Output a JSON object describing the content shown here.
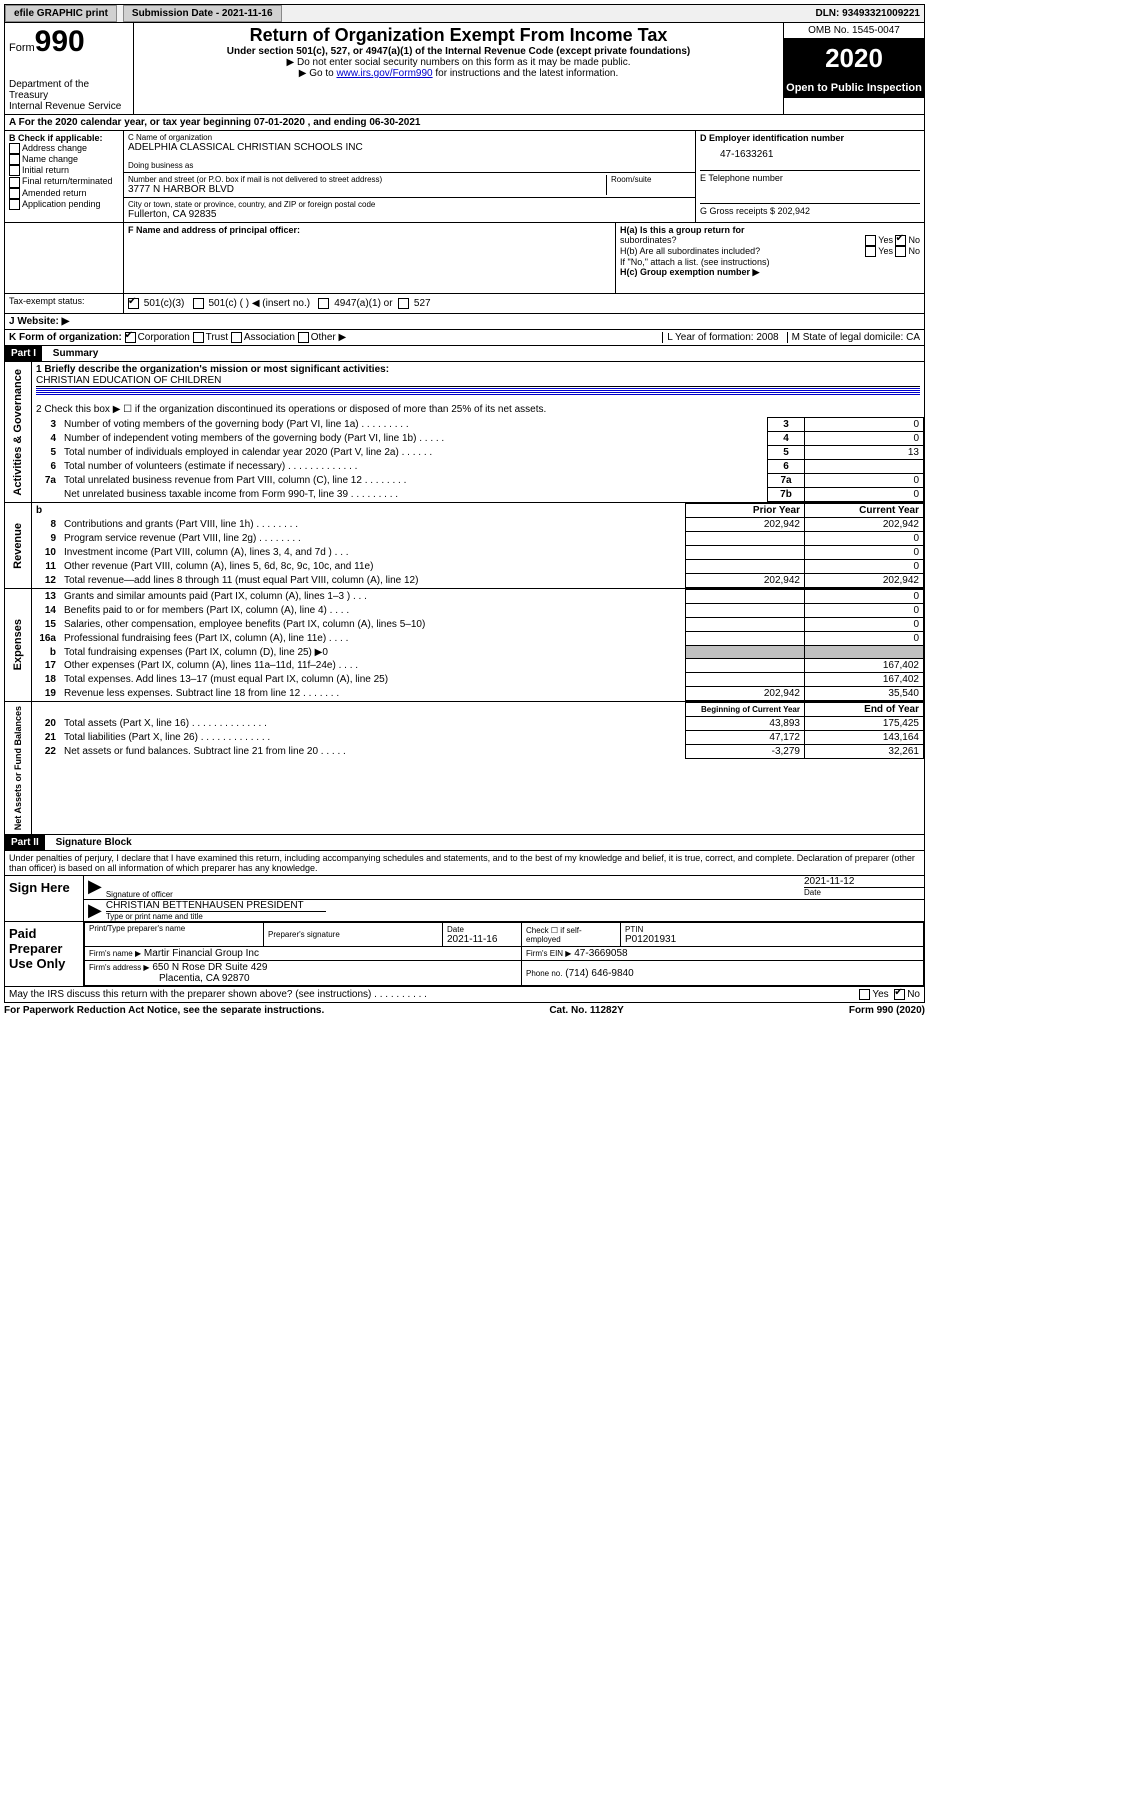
{
  "topbar": {
    "efile_label": "efile GRAPHIC print",
    "submission_label": "Submission Date - 2021-11-16",
    "dln": "DLN: 93493321009221"
  },
  "header": {
    "form_label": "Form",
    "form_number": "990",
    "dept": "Department of the Treasury",
    "irs": "Internal Revenue Service",
    "title": "Return of Organization Exempt From Income Tax",
    "subtitle": "Under section 501(c), 527, or 4947(a)(1) of the Internal Revenue Code (except private foundations)",
    "note1": "▶ Do not enter social security numbers on this form as it may be made public.",
    "note2_pre": "▶ Go to ",
    "note2_link": "www.irs.gov/Form990",
    "note2_post": " for instructions and the latest information.",
    "omb": "OMB No. 1545-0047",
    "year": "2020",
    "open_public": "Open to Public Inspection"
  },
  "rowA": "A For the 2020 calendar year, or tax year beginning 07-01-2020    , and ending 06-30-2021",
  "sectionB": {
    "label": "B Check if applicable:",
    "items": [
      "Address change",
      "Name change",
      "Initial return",
      "Final return/terminated",
      "Amended return",
      "Application pending"
    ]
  },
  "sectionC": {
    "name_label": "C Name of organization",
    "name": "ADELPHIA CLASSICAL CHRISTIAN SCHOOLS INC",
    "dba_label": "Doing business as",
    "street_label": "Number and street (or P.O. box if mail is not delivered to street address)",
    "room_label": "Room/suite",
    "street": "3777 N HARBOR BLVD",
    "city_label": "City or town, state or province, country, and ZIP or foreign postal code",
    "city": "Fullerton, CA  92835"
  },
  "sectionD": {
    "ein_label": "D Employer identification number",
    "ein": "47-1633261",
    "phone_label": "E Telephone number",
    "gross_label": "G Gross receipts $ 202,942"
  },
  "sectionF": {
    "label": "F  Name and address of principal officer:"
  },
  "sectionH": {
    "ha": "H(a)  Is this a group return for",
    "ha2": "subordinates?",
    "hb": "H(b)  Are all subordinates included?",
    "hb_note": "If \"No,\" attach a list. (see instructions)",
    "hc": "H(c)  Group exemption number ▶",
    "yes": "Yes",
    "no": "No"
  },
  "taxStatus": {
    "label": "Tax-exempt status:",
    "opt1": "501(c)(3)",
    "opt2": "501(c) (  ) ◀ (insert no.)",
    "opt3": "4947(a)(1) or",
    "opt4": "527"
  },
  "websiteJ": "J    Website: ▶",
  "rowK": {
    "label": "K Form of organization:",
    "opts": [
      "Corporation",
      "Trust",
      "Association",
      "Other ▶"
    ],
    "year_label": "L Year of formation: 2008",
    "state_label": "M State of legal domicile: CA"
  },
  "part1": {
    "title": "Part I",
    "subtitle": "Summary",
    "line1_label": "1  Briefly describe the organization's mission or most significant activities:",
    "line1_value": "CHRISTIAN EDUCATION OF CHILDREN",
    "line2": "2    Check this box ▶ ☐  if the organization discontinued its operations or disposed of more than 25% of its net assets."
  },
  "governance": {
    "side_label": "Activities & Governance",
    "rows": [
      {
        "n": "3",
        "label": "Number of voting members of the governing body (Part VI, line 1a)   .     .     .     .     .     .     .     .     .",
        "box": "3",
        "val": "0"
      },
      {
        "n": "4",
        "label": "Number of independent voting members of the governing body (Part VI, line 1b)   .     .     .     .     .",
        "box": "4",
        "val": "0"
      },
      {
        "n": "5",
        "label": "Total number of individuals employed in calendar year 2020 (Part V, line 2a)   .     .     .     .     .     .",
        "box": "5",
        "val": "13"
      },
      {
        "n": "6",
        "label": "Total number of volunteers (estimate if necessary)   .     .     .     .     .     .     .     .     .     .     .     .     .",
        "box": "6",
        "val": ""
      },
      {
        "n": "7a",
        "label": "Total unrelated business revenue from Part VIII, column (C), line 12   .     .     .     .     .     .     .     .",
        "box": "7a",
        "val": "0"
      },
      {
        "n": "",
        "label": "Net unrelated business taxable income from Form 990-T, line 39   .     .     .     .     .     .     .     .     .",
        "box": "7b",
        "val": "0"
      }
    ]
  },
  "revenue": {
    "side_label": "Revenue",
    "header_b": "b",
    "col_prior": "Prior Year",
    "col_current": "Current Year",
    "rows": [
      {
        "n": "8",
        "label": "Contributions and grants (Part VIII, line 1h)   .     .     .     .     .     .     .     .",
        "prior": "202,942",
        "curr": "202,942"
      },
      {
        "n": "9",
        "label": "Program service revenue (Part VIII, line 2g)   .     .     .     .     .     .     .     .",
        "prior": "",
        "curr": "0"
      },
      {
        "n": "10",
        "label": "Investment income (Part VIII, column (A), lines 3, 4, and 7d )   .     .     .",
        "prior": "",
        "curr": "0"
      },
      {
        "n": "11",
        "label": "Other revenue (Part VIII, column (A), lines 5, 6d, 8c, 9c, 10c, and 11e)",
        "prior": "",
        "curr": "0"
      },
      {
        "n": "12",
        "label": "Total revenue—add lines 8 through 11 (must equal Part VIII, column (A), line 12)",
        "prior": "202,942",
        "curr": "202,942"
      }
    ]
  },
  "expenses": {
    "side_label": "Expenses",
    "rows": [
      {
        "n": "13",
        "label": "Grants and similar amounts paid (Part IX, column (A), lines 1–3 )   .     .     .",
        "prior": "",
        "curr": "0"
      },
      {
        "n": "14",
        "label": "Benefits paid to or for members (Part IX, column (A), line 4)   .     .     .     .",
        "prior": "",
        "curr": "0"
      },
      {
        "n": "15",
        "label": "Salaries, other compensation, employee benefits (Part IX, column (A), lines 5–10)",
        "prior": "",
        "curr": "0"
      },
      {
        "n": "16a",
        "label": "Professional fundraising fees (Part IX, column (A), line 11e)   .     .     .     .",
        "prior": "",
        "curr": "0"
      },
      {
        "n": "b",
        "label": "Total fundraising expenses (Part IX, column (D), line 25) ▶0",
        "prior": "shaded",
        "curr": "shaded"
      },
      {
        "n": "17",
        "label": "Other expenses (Part IX, column (A), lines 11a–11d, 11f–24e)   .     .     .     .",
        "prior": "",
        "curr": "167,402"
      },
      {
        "n": "18",
        "label": "Total expenses. Add lines 13–17 (must equal Part IX, column (A), line 25)",
        "prior": "",
        "curr": "167,402"
      },
      {
        "n": "19",
        "label": "Revenue less expenses. Subtract line 18 from line 12   .     .     .     .     .     .     .",
        "prior": "202,942",
        "curr": "35,540"
      }
    ]
  },
  "netassets": {
    "side_label": "Net Assets or Fund Balances",
    "col_begin": "Beginning of Current Year",
    "col_end": "End of Year",
    "rows": [
      {
        "n": "20",
        "label": "Total assets (Part X, line 16)   .     .     .     .     .     .     .     .     .     .     .     .     .     .",
        "begin": "43,893",
        "end": "175,425"
      },
      {
        "n": "21",
        "label": "Total liabilities (Part X, line 26)   .     .     .     .     .     .     .     .     .     .     .     .     .",
        "begin": "47,172",
        "end": "143,164"
      },
      {
        "n": "22",
        "label": "Net assets or fund balances. Subtract line 21 from line 20   .     .     .     .     .",
        "begin": "-3,279",
        "end": "32,261"
      }
    ]
  },
  "part2": {
    "title": "Part II",
    "subtitle": "Signature Block",
    "penalties": "Under penalties of perjury, I declare that I have examined this return, including accompanying schedules and statements, and to the best of my knowledge and belief, it is true, correct, and complete. Declaration of preparer (other than officer) is based on all information of which preparer has any knowledge."
  },
  "signHere": {
    "label": "Sign Here",
    "sig_label": "Signature of officer",
    "date": "2021-11-12",
    "date_label": "Date",
    "name": "CHRISTIAN BETTENHAUSEN  PRESIDENT",
    "name_label": "Type or print name and title"
  },
  "paidPrep": {
    "label": "Paid Preparer Use Only",
    "col1": "Print/Type preparer's name",
    "col2": "Preparer's signature",
    "col3_label": "Date",
    "col3": "2021-11-16",
    "col4": "Check ☐ if self-employed",
    "col5_label": "PTIN",
    "col5": "P01201931",
    "firm_name_label": "Firm's name    ▶",
    "firm_name": "Martir Financial Group Inc",
    "firm_ein_label": "Firm's EIN ▶",
    "firm_ein": "47-3669058",
    "firm_addr_label": "Firm's address ▶",
    "firm_addr": "650 N Rose DR Suite 429",
    "firm_addr2": "Placentia, CA  92870",
    "phone_label": "Phone no.",
    "phone": "(714) 646-9840"
  },
  "discuss": {
    "label": "May the IRS discuss this return with the preparer shown above? (see instructions)   .     .     .     .     .     .     .     .     .     .",
    "yes": "Yes",
    "no": "No"
  },
  "footer": {
    "left": "For Paperwork Reduction Act Notice, see the separate instructions.",
    "mid": "Cat. No. 11282Y",
    "right": "Form 990 (2020)"
  }
}
